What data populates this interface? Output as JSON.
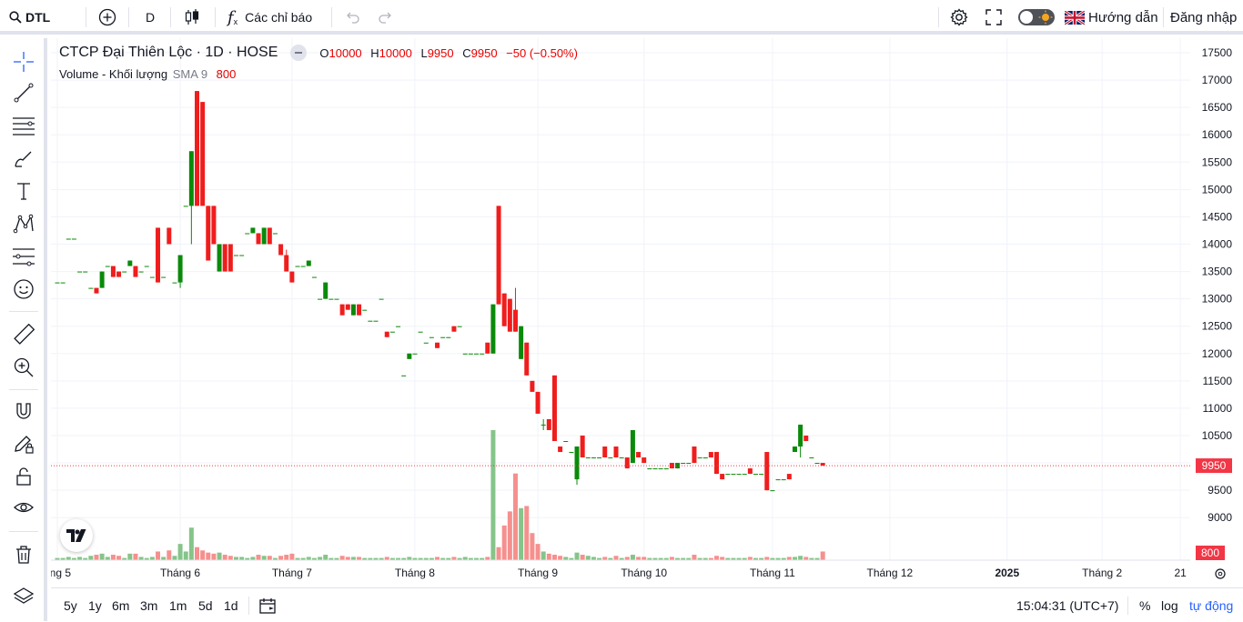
{
  "topbar": {
    "symbol": "DTL",
    "interval": "D",
    "indicators_label": "Các chỉ báo",
    "guide_label": "Hướng dẫn",
    "login_label": "Đăng nhập"
  },
  "legend": {
    "title": "CTCP Đại Thiên Lộc · 1D · HOSE",
    "o_key": "O",
    "o_val": "10000",
    "h_key": "H",
    "h_val": "10000",
    "l_key": "L",
    "l_val": "9950",
    "c_key": "C",
    "c_val": "9950",
    "change": "−50 (−0.50%)",
    "volume_label": "Volume - Khối lượng",
    "sma_label": "SMA 9",
    "volume_value": "800"
  },
  "bottombar": {
    "ranges": [
      "5y",
      "1y",
      "6m",
      "3m",
      "1m",
      "5d",
      "1d"
    ],
    "time": "15:04:31 (UTC+7)",
    "percent": "%",
    "log": "log",
    "auto": "tự động"
  },
  "colors": {
    "up": "#0a8a0a",
    "down": "#f01d1d",
    "vol_up": "#86c48a",
    "vol_down": "#f5908e",
    "accent": "#2962ff"
  },
  "chart_data": {
    "type": "candlestick",
    "y_ticks": [
      17500,
      17000,
      16500,
      16000,
      15500,
      15000,
      14500,
      14000,
      13500,
      13000,
      12500,
      12000,
      11500,
      11000,
      10500,
      10000,
      9500,
      9000
    ],
    "ylim": [
      8800,
      17600
    ],
    "x_labels": [
      {
        "label": "áng 5",
        "t": 0
      },
      {
        "label": "Tháng 6",
        "t": 22
      },
      {
        "label": "Tháng 7",
        "t": 42
      },
      {
        "label": "Tháng 8",
        "t": 64
      },
      {
        "label": "Tháng 9",
        "t": 86
      },
      {
        "label": "Tháng 10",
        "t": 105
      },
      {
        "label": "Tháng 11",
        "t": 128
      },
      {
        "label": "Tháng 12",
        "t": 149
      },
      {
        "label": "2025",
        "t": 170
      },
      {
        "label": "Tháng 2",
        "t": 187
      },
      {
        "label": "21",
        "t": 201
      }
    ],
    "last_price": 9950,
    "last_volume": "800",
    "candles": [
      [
        13300,
        13300,
        13300,
        13300,
        200
      ],
      [
        13300,
        13300,
        13300,
        13300,
        200
      ],
      [
        14100,
        14100,
        14100,
        14100,
        300
      ],
      [
        14100,
        14100,
        14100,
        14100,
        200
      ],
      [
        13500,
        13500,
        13500,
        13500,
        300
      ],
      [
        13500,
        13500,
        13500,
        13500,
        200
      ],
      [
        13200,
        13200,
        13200,
        13200,
        400
      ],
      [
        13200,
        13200,
        13100,
        13100,
        500
      ],
      [
        13200,
        13500,
        13200,
        13500,
        600
      ],
      [
        13600,
        13600,
        13600,
        13600,
        300
      ],
      [
        13600,
        13600,
        13400,
        13400,
        500
      ],
      [
        13500,
        13500,
        13400,
        13400,
        400
      ],
      [
        13500,
        13500,
        13500,
        13500,
        200
      ],
      [
        13600,
        13700,
        13600,
        13700,
        600
      ],
      [
        13600,
        13600,
        13400,
        13400,
        600
      ],
      [
        13500,
        13500,
        13500,
        13500,
        300
      ],
      [
        13600,
        13600,
        13600,
        13600,
        200
      ],
      [
        13400,
        13400,
        13400,
        13400,
        300
      ],
      [
        14300,
        14300,
        13300,
        13300,
        800
      ],
      [
        13400,
        13400,
        13400,
        13400,
        300
      ],
      [
        14300,
        14300,
        14000,
        14000,
        900
      ],
      [
        13300,
        13300,
        13300,
        13300,
        400
      ],
      [
        13300,
        13800,
        13200,
        13800,
        1500
      ],
      [
        14700,
        14700,
        14700,
        14700,
        800
      ],
      [
        14700,
        15700,
        14000,
        15700,
        3000
      ],
      [
        16800,
        16800,
        14700,
        14700,
        1200
      ],
      [
        16600,
        16600,
        14700,
        14700,
        900
      ],
      [
        14700,
        14700,
        13700,
        13700,
        700
      ],
      [
        14700,
        14700,
        14000,
        14000,
        600
      ],
      [
        13500,
        14000,
        13500,
        14000,
        700
      ],
      [
        14000,
        14000,
        13500,
        13500,
        500
      ],
      [
        14000,
        14000,
        13500,
        13500,
        400
      ],
      [
        13800,
        13800,
        13800,
        13800,
        300
      ],
      [
        13800,
        13800,
        13800,
        13800,
        300
      ],
      [
        14200,
        14200,
        14200,
        14200,
        200
      ],
      [
        14200,
        14300,
        14200,
        14300,
        300
      ],
      [
        14200,
        14200,
        14000,
        14000,
        500
      ],
      [
        14000,
        14300,
        14000,
        14300,
        400
      ],
      [
        14300,
        14300,
        14000,
        14000,
        400
      ],
      [
        14200,
        14200,
        14200,
        14200,
        200
      ],
      [
        14000,
        14000,
        13800,
        13800,
        400
      ],
      [
        13800,
        13900,
        13500,
        13500,
        500
      ],
      [
        13500,
        13500,
        13300,
        13300,
        600
      ],
      [
        13600,
        13600,
        13600,
        13600,
        200
      ],
      [
        13600,
        13600,
        13600,
        13600,
        200
      ],
      [
        13600,
        13700,
        13600,
        13700,
        300
      ],
      [
        13400,
        13400,
        13400,
        13400,
        200
      ],
      [
        13000,
        13000,
        13000,
        13000,
        300
      ],
      [
        13000,
        13300,
        13000,
        13300,
        500
      ],
      [
        13000,
        13000,
        13000,
        13000,
        200
      ],
      [
        13000,
        13000,
        13000,
        13000,
        200
      ],
      [
        12900,
        12900,
        12700,
        12700,
        400
      ],
      [
        12900,
        12900,
        12800,
        12800,
        300
      ],
      [
        12700,
        12900,
        12700,
        12900,
        300
      ],
      [
        12900,
        12900,
        12700,
        12700,
        300
      ],
      [
        12800,
        12800,
        12800,
        12800,
        200
      ],
      [
        12600,
        12600,
        12600,
        12600,
        200
      ],
      [
        12600,
        12600,
        12600,
        12600,
        200
      ],
      [
        13000,
        13000,
        13000,
        13000,
        200
      ],
      [
        12400,
        12400,
        12300,
        12300,
        300
      ],
      [
        12400,
        12400,
        12400,
        12400,
        200
      ],
      [
        12500,
        12500,
        12500,
        12500,
        200
      ],
      [
        11600,
        11600,
        11600,
        11600,
        200
      ],
      [
        11900,
        12000,
        11900,
        12000,
        300
      ],
      [
        12000,
        12000,
        12000,
        12000,
        200
      ],
      [
        12400,
        12400,
        12400,
        12400,
        200
      ],
      [
        12200,
        12200,
        12200,
        12200,
        200
      ],
      [
        12300,
        12300,
        12300,
        12300,
        200
      ],
      [
        12200,
        12200,
        12100,
        12100,
        300
      ],
      [
        12300,
        12300,
        12300,
        12300,
        200
      ],
      [
        12300,
        12300,
        12300,
        12300,
        200
      ],
      [
        12500,
        12500,
        12400,
        12400,
        300
      ],
      [
        12500,
        12500,
        12500,
        12500,
        200
      ],
      [
        12000,
        12000,
        12000,
        12000,
        300
      ],
      [
        12000,
        12000,
        12000,
        12000,
        200
      ],
      [
        12000,
        12000,
        12000,
        12000,
        200
      ],
      [
        12000,
        12000,
        12000,
        12000,
        200
      ],
      [
        12200,
        12200,
        12000,
        12000,
        300
      ],
      [
        12000,
        12900,
        12000,
        12900,
        12000
      ],
      [
        14700,
        14700,
        12900,
        12900,
        1200
      ],
      [
        13100,
        13100,
        12500,
        12500,
        3200
      ],
      [
        13000,
        13000,
        12400,
        12400,
        4500
      ],
      [
        12800,
        13200,
        12400,
        12400,
        8000
      ],
      [
        11900,
        12500,
        11900,
        12500,
        4800
      ],
      [
        12200,
        12200,
        11600,
        11600,
        5000
      ],
      [
        11500,
        11500,
        11300,
        11300,
        2500
      ],
      [
        11300,
        11300,
        10900,
        10900,
        1500
      ],
      [
        10700,
        10800,
        10600,
        10700,
        800
      ],
      [
        10800,
        10800,
        10600,
        10600,
        600
      ],
      [
        11600,
        11600,
        10400,
        10400,
        500
      ],
      [
        10300,
        10300,
        10200,
        10200,
        400
      ],
      [
        10400,
        10400,
        10400,
        10400,
        300
      ],
      [
        10200,
        10200,
        10200,
        10200,
        200
      ],
      [
        9700,
        10300,
        9600,
        10300,
        700
      ],
      [
        10500,
        10500,
        10100,
        10100,
        500
      ],
      [
        10100,
        10100,
        10100,
        10100,
        400
      ],
      [
        10100,
        10100,
        10100,
        10100,
        300
      ],
      [
        10100,
        10100,
        10100,
        10100,
        200
      ],
      [
        10300,
        10300,
        10100,
        10100,
        300
      ],
      [
        10100,
        10100,
        10100,
        10100,
        200
      ],
      [
        10300,
        10300,
        10100,
        10100,
        400
      ],
      [
        10100,
        10100,
        10100,
        10100,
        200
      ],
      [
        10100,
        10100,
        9900,
        9900,
        300
      ],
      [
        10000,
        10600,
        10000,
        10600,
        500
      ],
      [
        10200,
        10200,
        10100,
        10100,
        300
      ],
      [
        10100,
        10100,
        10000,
        10000,
        300
      ],
      [
        9900,
        9900,
        9900,
        9900,
        200
      ],
      [
        9900,
        9900,
        9900,
        9900,
        200
      ],
      [
        9900,
        9900,
        9900,
        9900,
        200
      ],
      [
        9900,
        9900,
        9900,
        9900,
        200
      ],
      [
        10000,
        10000,
        9900,
        9900,
        300
      ],
      [
        9900,
        10000,
        9900,
        10000,
        200
      ],
      [
        10000,
        10000,
        10000,
        10000,
        200
      ],
      [
        10000,
        10000,
        10000,
        10000,
        200
      ],
      [
        10300,
        10300,
        10000,
        10000,
        500
      ],
      [
        10100,
        10100,
        10100,
        10100,
        200
      ],
      [
        10100,
        10100,
        10100,
        10100,
        200
      ],
      [
        10200,
        10200,
        10100,
        10100,
        200
      ],
      [
        10200,
        10200,
        9800,
        9800,
        400
      ],
      [
        9800,
        9800,
        9700,
        9700,
        300
      ],
      [
        9800,
        9800,
        9800,
        9800,
        200
      ],
      [
        9800,
        9800,
        9800,
        9800,
        200
      ],
      [
        9800,
        9800,
        9800,
        9800,
        200
      ],
      [
        9800,
        9800,
        9800,
        9800,
        200
      ],
      [
        9900,
        9900,
        9800,
        9800,
        300
      ],
      [
        9800,
        9800,
        9800,
        9800,
        200
      ],
      [
        9800,
        9800,
        9800,
        9800,
        200
      ],
      [
        10200,
        10200,
        9500,
        9500,
        300
      ],
      [
        9500,
        9500,
        9500,
        9500,
        200
      ],
      [
        9700,
        9700,
        9700,
        9700,
        200
      ],
      [
        9700,
        9700,
        9700,
        9700,
        200
      ],
      [
        9800,
        9800,
        9700,
        9700,
        300
      ],
      [
        10200,
        10300,
        10200,
        10300,
        300
      ],
      [
        10300,
        10700,
        10100,
        10700,
        400
      ],
      [
        10500,
        10500,
        10400,
        10400,
        300
      ],
      [
        10100,
        10100,
        10100,
        10100,
        200
      ],
      [
        10000,
        10000,
        10000,
        10000,
        200
      ],
      [
        10000,
        10000,
        9950,
        9950,
        800
      ]
    ]
  }
}
